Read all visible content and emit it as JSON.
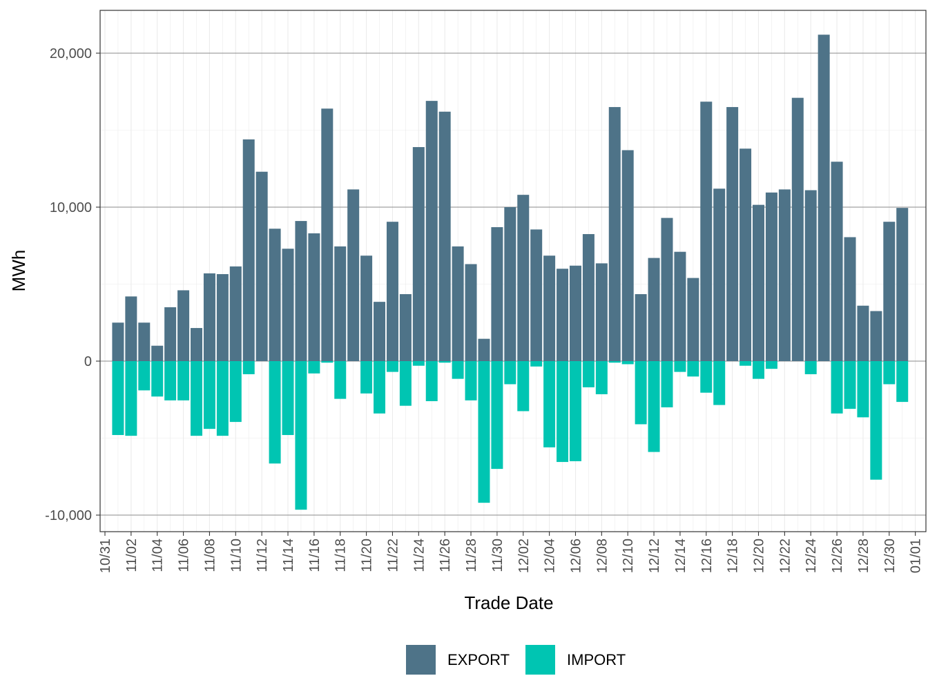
{
  "chart_data": {
    "type": "bar",
    "stacked": true,
    "title": "",
    "xlabel": "Trade Date",
    "ylabel": "MWh",
    "ylim": [
      -11000,
      22500
    ],
    "y_ticks": [
      -10000,
      0,
      10000,
      20000
    ],
    "y_tick_labels": [
      "-10,000",
      "0",
      "10,000",
      "20,000"
    ],
    "x_start": "2023-11-01",
    "x_tick_labels": [
      "10/31",
      "11/02",
      "11/04",
      "11/06",
      "11/08",
      "11/10",
      "11/12",
      "11/14",
      "11/16",
      "11/18",
      "11/20",
      "11/22",
      "11/24",
      "11/26",
      "11/28",
      "11/30",
      "12/02",
      "12/04",
      "12/06",
      "12/08",
      "12/10",
      "12/12",
      "12/14",
      "12/16",
      "12/18",
      "12/20",
      "12/22",
      "12/24",
      "12/26",
      "12/28",
      "12/30",
      "01/01"
    ],
    "grid": true,
    "legend_position": "bottom",
    "series": [
      {
        "name": "EXPORT",
        "color": "#4e7388",
        "values": [
          2500,
          4200,
          2500,
          1000,
          3500,
          4600,
          2150,
          5700,
          5650,
          6150,
          14400,
          12300,
          8600,
          7300,
          9100,
          8300,
          16400,
          7450,
          11150,
          6850,
          3850,
          9050,
          4350,
          13900,
          16900,
          16200,
          7450,
          6300,
          1450,
          8700,
          10000,
          10800,
          8550,
          6850,
          6000,
          6200,
          8250,
          6350,
          16500,
          13700,
          4350,
          6700,
          9300,
          7100,
          5400,
          16850,
          11200,
          16500,
          13800,
          10150,
          10950,
          11150,
          17100,
          11100,
          21200,
          12950,
          8050,
          3600,
          3250,
          9050,
          9950
        ]
      },
      {
        "name": "IMPORT",
        "color": "#00c5b2",
        "values": [
          -4800,
          -4850,
          -1900,
          -2300,
          -2550,
          -2550,
          -4850,
          -4400,
          -4850,
          -3950,
          -850,
          0,
          -6650,
          -4800,
          -9650,
          -800,
          -100,
          -2450,
          0,
          -2100,
          -3400,
          -700,
          -2900,
          -300,
          -2600,
          -100,
          -1150,
          -2550,
          -9200,
          -7000,
          -1500,
          -3250,
          -350,
          -5600,
          -6550,
          -6500,
          -1700,
          -2150,
          -100,
          -200,
          -4100,
          -5900,
          -3000,
          -700,
          -1000,
          -2050,
          -2850,
          0,
          -300,
          -1150,
          -500,
          0,
          0,
          -850,
          0,
          -3400,
          -3100,
          -3650,
          -7700,
          -1500,
          -2650
        ]
      }
    ]
  }
}
